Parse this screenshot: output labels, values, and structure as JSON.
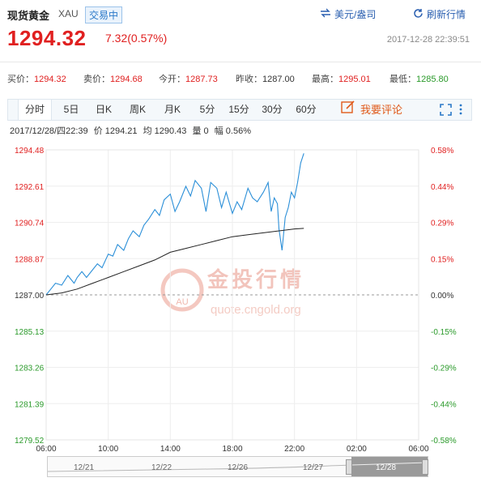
{
  "header": {
    "title": "现货黄金",
    "code": "XAU",
    "exchange_badge": "交易中",
    "currency_link": "美元/盎司",
    "refresh_link": "刷新行情",
    "price": "1294.32",
    "change": "7.32(0.57%)",
    "timestamp": "2017-12-28 22:39:51"
  },
  "stats": [
    {
      "label": "买价：",
      "value": "1294.32",
      "color": "red"
    },
    {
      "label": "卖价：",
      "value": "1294.68",
      "color": "red"
    },
    {
      "label": "今开：",
      "value": "1287.73",
      "color": "red"
    },
    {
      "label": "昨收：",
      "value": "1287.00",
      "color": "black"
    },
    {
      "label": "最高：",
      "value": "1295.01",
      "color": "red"
    },
    {
      "label": "最低：",
      "value": "1285.80",
      "color": "green"
    }
  ],
  "tabs": [
    "分时",
    "5日",
    "日K",
    "周K",
    "月K",
    "5分",
    "15分",
    "30分",
    "60分"
  ],
  "active_tab": "分时",
  "comment_label": "我要评论",
  "info_line": {
    "datetime": "2017/12/28/四22:39",
    "price_label": "价",
    "price": "1294.21",
    "avg_label": "均",
    "avg": "1290.43",
    "vol_label": "量",
    "vol": "0",
    "amp_label": "幅",
    "amp": "0.56%"
  },
  "watermark": {
    "text": "金投行情",
    "url": "quote.cngold.org",
    "logo": "AU"
  },
  "colors": {
    "up": "#e02020",
    "down": "#2a9a2a",
    "price_line": "#2b8fd8",
    "avg_line": "#222222",
    "tab_border": "#dde6ee"
  },
  "chart_data": {
    "type": "line",
    "x_labels": [
      "06:00",
      "10:00",
      "14:00",
      "18:00",
      "22:00",
      "02:00",
      "06:00"
    ],
    "y_ticks": [
      "1294.48",
      "1292.61",
      "1290.74",
      "1288.87",
      "1287.00",
      "1285.13",
      "1283.26",
      "1281.39",
      "1279.52"
    ],
    "pct_ticks": [
      "0.58%",
      "0.44%",
      "0.29%",
      "0.15%",
      "0.00%",
      "-0.15%",
      "-0.29%",
      "-0.44%",
      "-0.58%"
    ],
    "base": 1287.0,
    "ylim": [
      1279.52,
      1294.48
    ],
    "x_hours_start": 6,
    "x_hours_span": 24,
    "grid": true,
    "series": [
      {
        "name": "价",
        "x": [
          6.0,
          6.3,
          6.6,
          7.0,
          7.4,
          7.8,
          8.0,
          8.3,
          8.6,
          9.0,
          9.3,
          9.6,
          10.0,
          10.3,
          10.6,
          11.0,
          11.3,
          11.6,
          12.0,
          12.3,
          12.6,
          13.0,
          13.3,
          13.6,
          14.0,
          14.3,
          14.6,
          15.0,
          15.3,
          15.6,
          16.0,
          16.3,
          16.6,
          17.0,
          17.3,
          17.6,
          18.0,
          18.3,
          18.6,
          19.0,
          19.3,
          19.6,
          20.0,
          20.3,
          20.5,
          20.7,
          20.9,
          21.0,
          21.2,
          21.4,
          21.6,
          21.8,
          22.0,
          22.2,
          22.4,
          22.6
        ],
        "y": [
          1287.0,
          1287.3,
          1287.6,
          1287.5,
          1288.0,
          1287.6,
          1287.9,
          1288.2,
          1287.9,
          1288.3,
          1288.6,
          1288.4,
          1289.1,
          1289.0,
          1289.6,
          1289.3,
          1289.9,
          1290.3,
          1290.0,
          1290.6,
          1290.9,
          1291.4,
          1291.1,
          1291.9,
          1292.2,
          1291.3,
          1291.8,
          1292.6,
          1292.1,
          1292.9,
          1292.5,
          1291.3,
          1292.8,
          1292.5,
          1291.5,
          1292.3,
          1291.2,
          1291.8,
          1291.4,
          1292.5,
          1292.0,
          1291.8,
          1292.3,
          1292.8,
          1291.3,
          1292.0,
          1291.7,
          1290.4,
          1289.3,
          1291.0,
          1291.5,
          1292.3,
          1292.0,
          1292.8,
          1293.8,
          1294.3
        ]
      },
      {
        "name": "均",
        "x": [
          6.0,
          7.0,
          8.0,
          9.0,
          10.0,
          11.0,
          12.0,
          13.0,
          14.0,
          15.0,
          16.0,
          17.0,
          18.0,
          19.0,
          20.0,
          21.0,
          22.0,
          22.6
        ],
        "y": [
          1287.0,
          1287.1,
          1287.3,
          1287.6,
          1287.9,
          1288.2,
          1288.5,
          1288.8,
          1289.2,
          1289.4,
          1289.6,
          1289.8,
          1290.0,
          1290.1,
          1290.2,
          1290.3,
          1290.4,
          1290.43
        ]
      }
    ]
  },
  "navigator": {
    "dates": [
      "12/21",
      "12/22",
      "12/26",
      "12/27",
      "12/28"
    ]
  }
}
